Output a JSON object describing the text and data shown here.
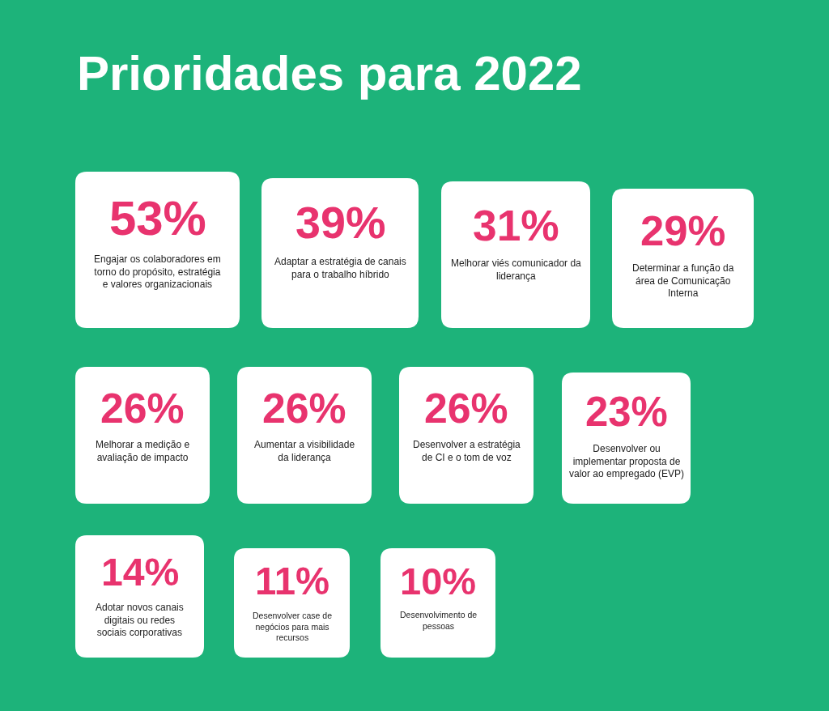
{
  "chart_data": {
    "type": "other",
    "title": "Prioridades para 2022",
    "categories": [
      "Engajar os colaboradores em torno do propósito, estratégia e valores organizacionais",
      "Adaptar a estratégia de canais para o trabalho híbrido",
      "Melhorar viés comunicador da liderança",
      "Determinar a função da área de Comunicação Interna",
      "Melhorar a medição e avaliação de impacto",
      "Aumentar a visibilidade da liderança",
      "Desenvolver a estratégia de CI e o tom de voz",
      "Desenvolver ou implementar proposta de valor ao empregado (EVP)",
      "Adotar novos canais digitais ou redes sociais corporativas",
      "Desenvolver case de negócios para mais recursos",
      "Desenvolvimento de pessoas"
    ],
    "values": [
      53,
      39,
      31,
      29,
      26,
      26,
      26,
      23,
      14,
      11,
      10
    ],
    "value_labels": [
      "53%",
      "39%",
      "31%",
      "29%",
      "26%",
      "26%",
      "26%",
      "23%",
      "14%",
      "11%",
      "10%"
    ],
    "color": "#ffffff"
  }
}
